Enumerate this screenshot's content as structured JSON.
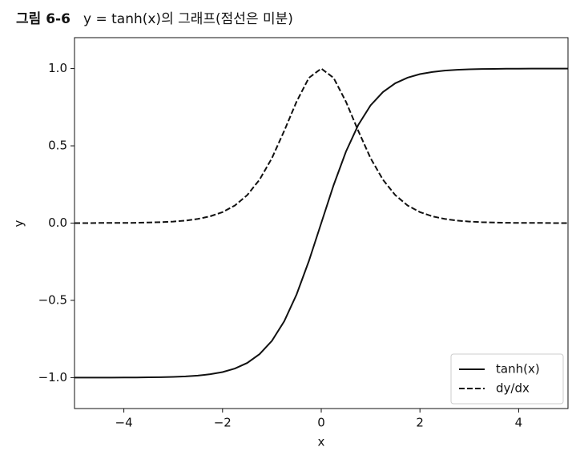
{
  "chart_data": {
    "type": "line",
    "figure_label": "그림 6-6",
    "title": "y = tanh(x)의 그래프(점선은 미분)",
    "xlabel": "x",
    "ylabel": "y",
    "x": [
      -5,
      -4.75,
      -4.5,
      -4.25,
      -4,
      -3.75,
      -3.5,
      -3.25,
      -3,
      -2.75,
      -2.5,
      -2.25,
      -2,
      -1.75,
      -1.5,
      -1.25,
      -1,
      -0.75,
      -0.5,
      -0.25,
      0,
      0.25,
      0.5,
      0.75,
      1,
      1.25,
      1.5,
      1.75,
      2,
      2.25,
      2.5,
      2.75,
      3,
      3.25,
      3.5,
      3.75,
      4,
      4.25,
      4.5,
      4.75,
      5
    ],
    "series": [
      {
        "name": "tanh(x)",
        "color": "#111111",
        "dash": "solid",
        "values": [
          -1,
          -1,
          -1,
          -1,
          -0.999,
          -0.999,
          -0.998,
          -0.997,
          -0.995,
          -0.992,
          -0.987,
          -0.978,
          -0.964,
          -0.941,
          -0.905,
          -0.848,
          -0.762,
          -0.635,
          -0.462,
          -0.245,
          0,
          0.245,
          0.462,
          0.635,
          0.762,
          0.848,
          0.905,
          0.941,
          0.964,
          0.978,
          0.987,
          0.992,
          0.995,
          0.997,
          0.998,
          0.999,
          0.999,
          1,
          1,
          1,
          1
        ]
      },
      {
        "name": "dy/dx",
        "color": "#111111",
        "dash": "dashed",
        "values": [
          0,
          0,
          0.001,
          0.001,
          0.001,
          0.002,
          0.004,
          0.006,
          0.01,
          0.016,
          0.027,
          0.044,
          0.071,
          0.114,
          0.181,
          0.281,
          0.42,
          0.597,
          0.786,
          0.94,
          1,
          0.94,
          0.786,
          0.597,
          0.42,
          0.281,
          0.181,
          0.114,
          0.071,
          0.044,
          0.027,
          0.016,
          0.01,
          0.006,
          0.004,
          0.002,
          0.001,
          0.001,
          0.001,
          0,
          0
        ]
      }
    ],
    "xlim": [
      -5,
      5
    ],
    "ylim": [
      -1.2,
      1.2
    ],
    "xticks": [
      {
        "value": -4,
        "label": "−4"
      },
      {
        "value": -2,
        "label": "−2"
      },
      {
        "value": 0,
        "label": "0"
      },
      {
        "value": 2,
        "label": "2"
      },
      {
        "value": 4,
        "label": "4"
      }
    ],
    "yticks": [
      {
        "value": -1,
        "label": "−1.0"
      },
      {
        "value": -0.5,
        "label": "−0.5"
      },
      {
        "value": 0,
        "label": "0.0"
      },
      {
        "value": 0.5,
        "label": "0.5"
      },
      {
        "value": 1,
        "label": "1.0"
      }
    ],
    "legend": "lower right"
  }
}
